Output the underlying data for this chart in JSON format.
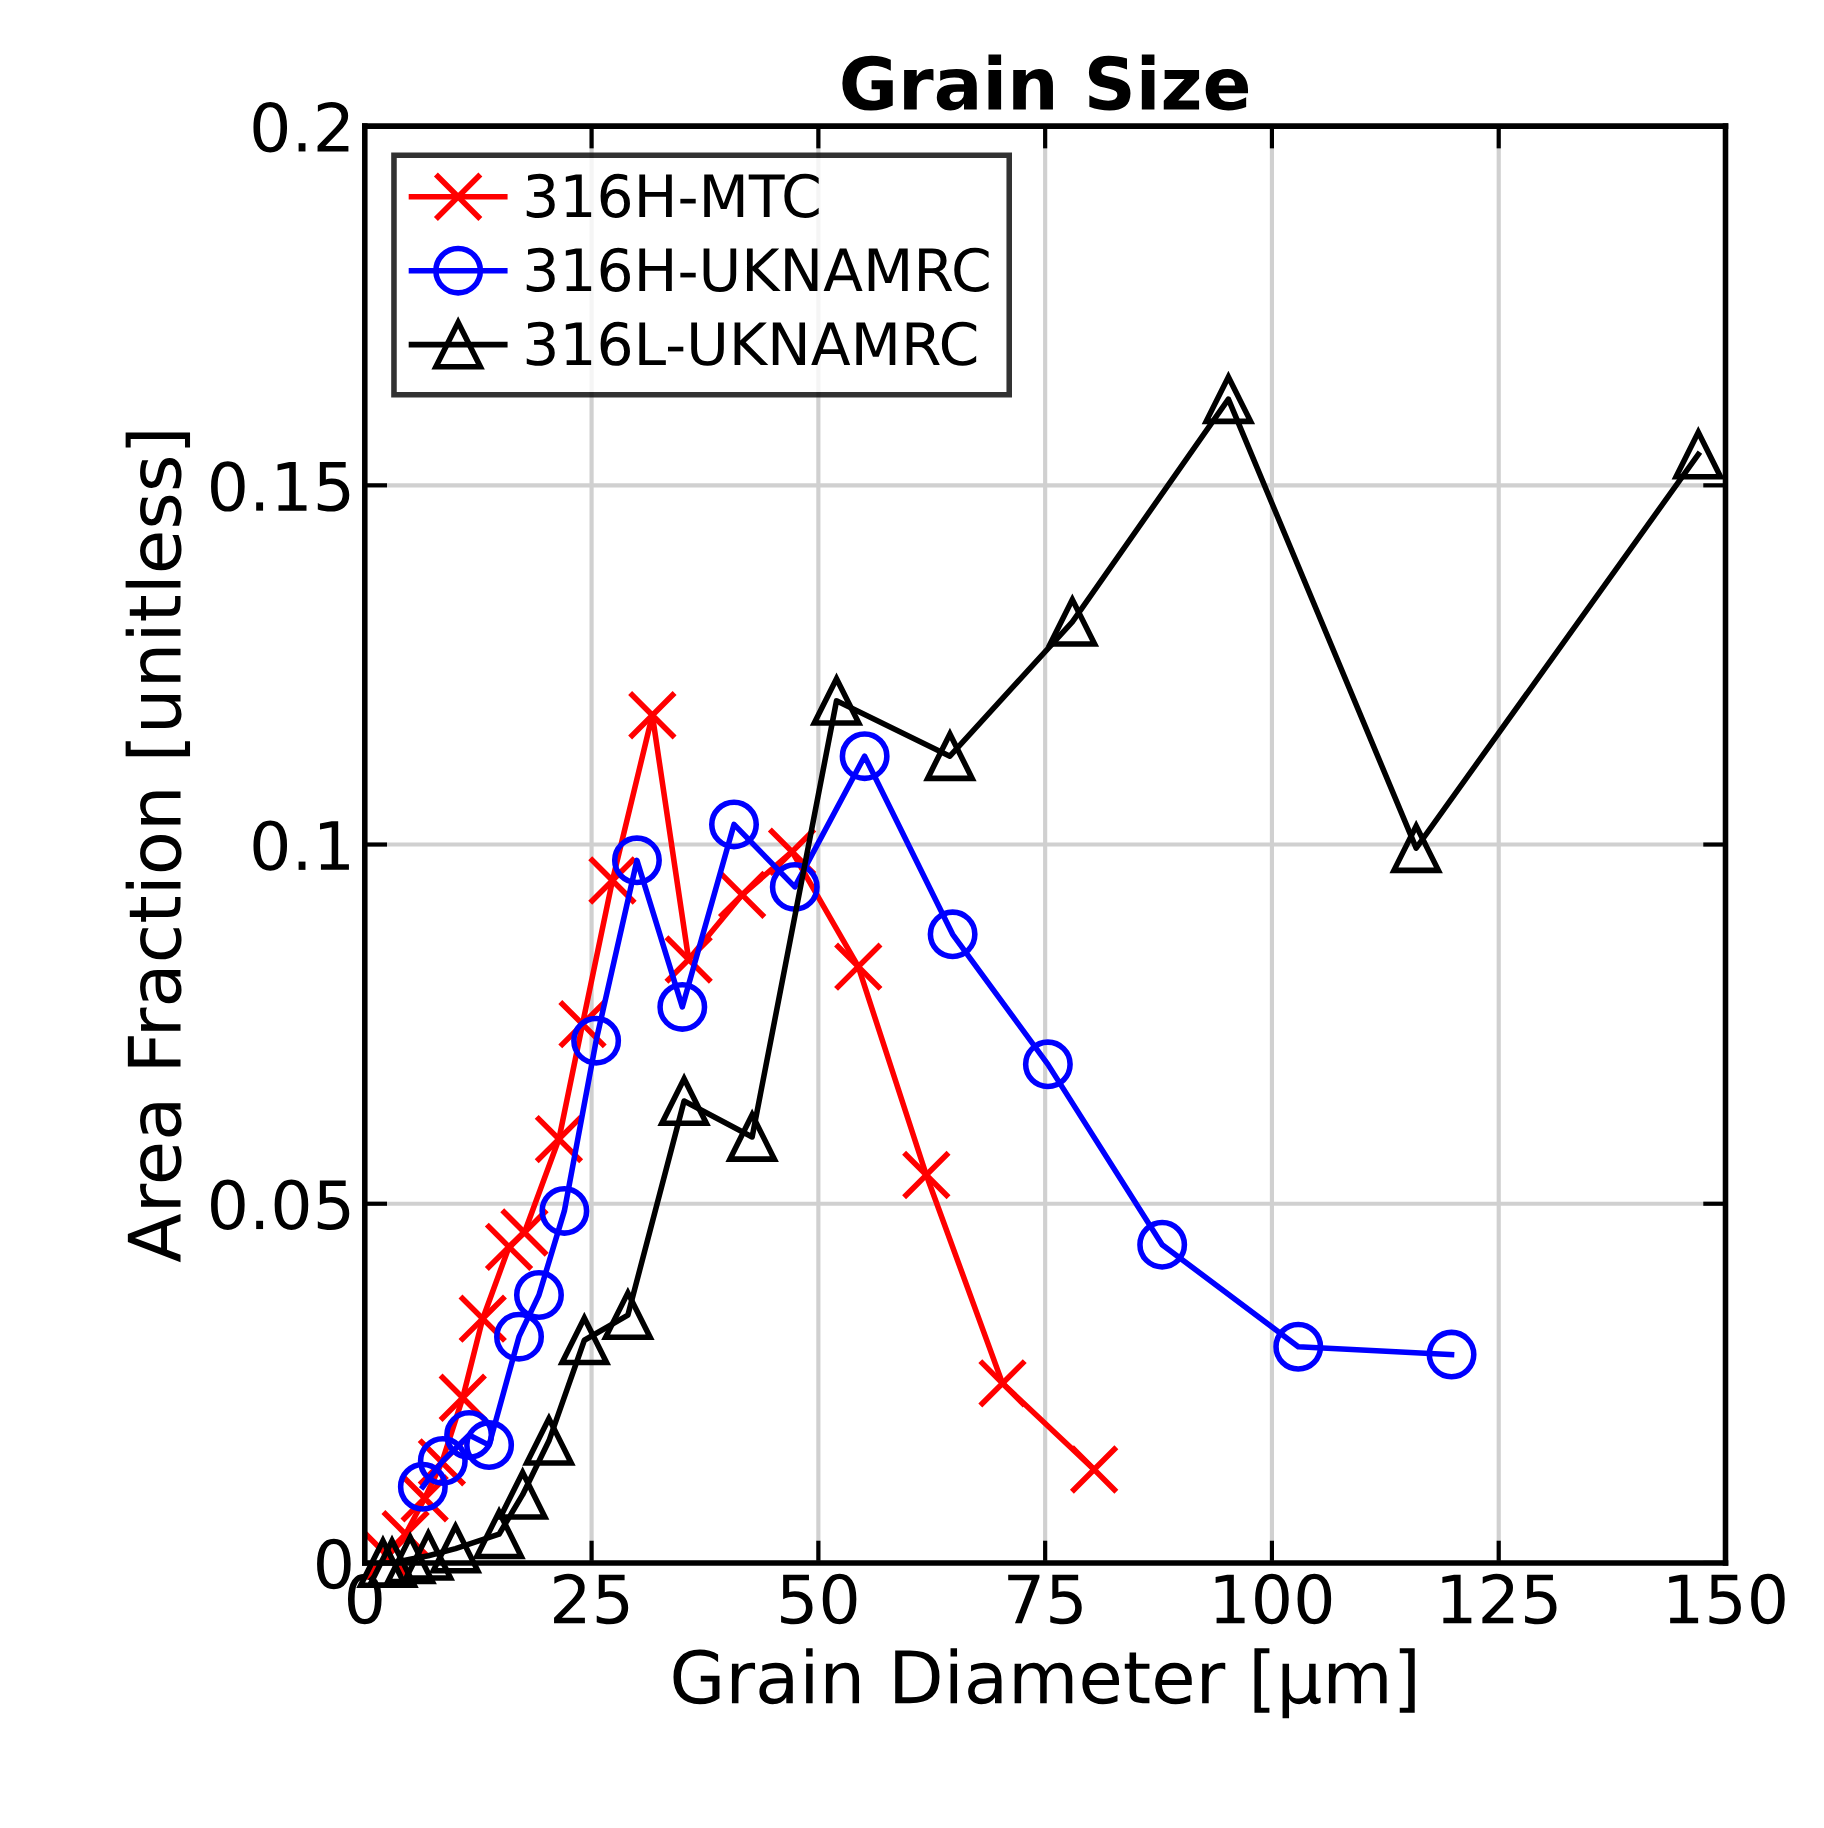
{
  "chart_data": {
    "type": "line",
    "title": "Grain Size",
    "xlabel": "Grain Diameter [µm]",
    "ylabel": "Area Fraction [unitless]",
    "xlim": [
      0,
      150
    ],
    "xticks": [
      0,
      25,
      50,
      75,
      100,
      125,
      150
    ],
    "ylim": [
      0,
      0.2
    ],
    "yticks": [
      0,
      0.05,
      0.1,
      0.15,
      0.2
    ],
    "grid": true,
    "legend": "top left",
    "series": [
      {
        "name": "316H-MTC",
        "color": "#ff0000",
        "marker": "cross",
        "x": [
          2.5,
          4.5,
          6.6,
          8.5,
          10.8,
          13,
          15.9,
          17.6,
          21.4,
          24,
          27.3,
          31.7,
          35.7,
          41.6,
          47.1,
          54.4,
          61.9,
          70.3,
          80.4
        ],
        "values": [
          0.001,
          0.004,
          0.009,
          0.014,
          0.023,
          0.034,
          0.044,
          0.046,
          0.059,
          0.075,
          0.095,
          0.118,
          0.084,
          0.093,
          0.099,
          0.083,
          0.054,
          0.025,
          0.013
        ]
      },
      {
        "name": "316H-UKNAMRC",
        "color": "#0000ff",
        "marker": "circle",
        "x": [
          6.4,
          8.6,
          11.5,
          13.7,
          17,
          19.2,
          22,
          25.5,
          30,
          35,
          40.7,
          47.4,
          55.1,
          64.8,
          75.3,
          87.9,
          102.9,
          119.8
        ],
        "values": [
          0.0106,
          0.0142,
          0.0178,
          0.0164,
          0.0315,
          0.0373,
          0.049,
          0.0727,
          0.0978,
          0.0774,
          0.1028,
          0.0941,
          0.1123,
          0.0875,
          0.0694,
          0.0443,
          0.0301,
          0.029
        ]
      },
      {
        "name": "316L-UKNAMRC",
        "color": "#000000",
        "marker": "triangle",
        "x": [
          2,
          3,
          5,
          7,
          10,
          14.8,
          17.4,
          20.3,
          24.2,
          29,
          35.2,
          42.7,
          52,
          64.5,
          78,
          95.2,
          115.9,
          147
        ],
        "values": [
          0,
          0,
          0.0005,
          0.001,
          0.002,
          0.004,
          0.0095,
          0.017,
          0.031,
          0.0345,
          0.0643,
          0.0593,
          0.12,
          0.1123,
          0.131,
          0.162,
          0.0995,
          0.1543
        ]
      }
    ]
  }
}
